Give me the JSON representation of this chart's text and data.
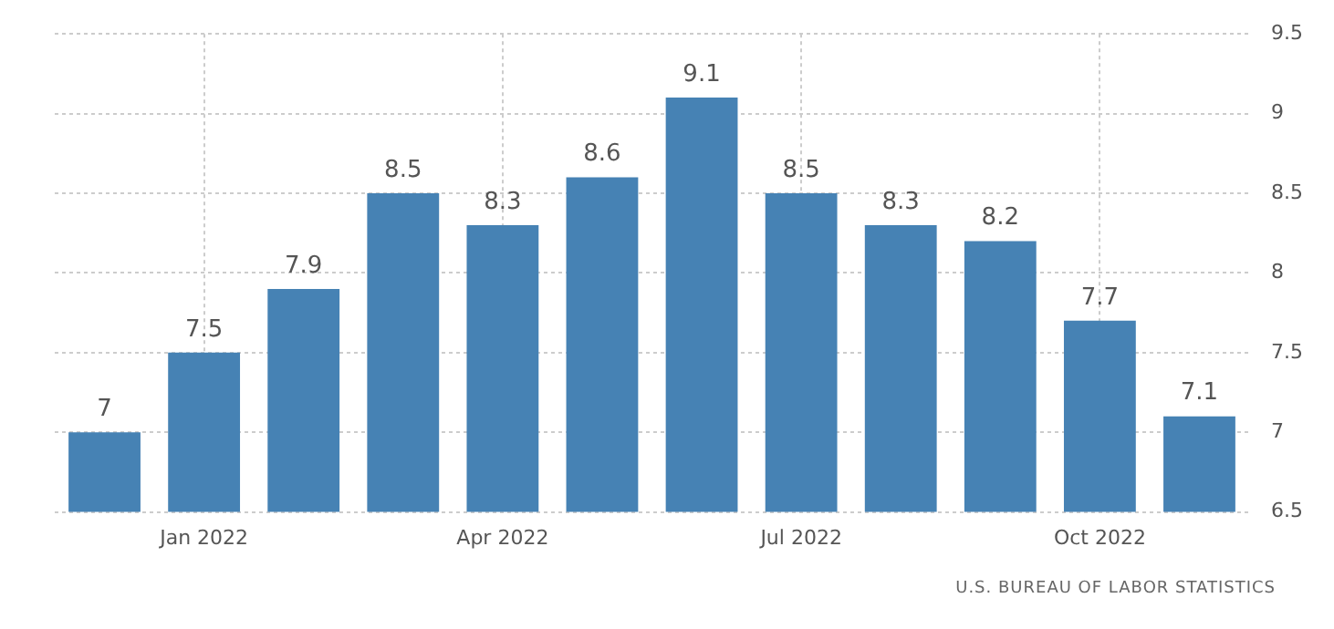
{
  "chart_data": {
    "type": "bar",
    "categories": [
      null,
      "Jan 2022",
      null,
      null,
      "Apr 2022",
      null,
      null,
      "Jul 2022",
      null,
      null,
      "Oct 2022",
      null
    ],
    "values": [
      7,
      7.5,
      7.9,
      8.5,
      8.3,
      8.6,
      9.1,
      8.5,
      8.3,
      8.2,
      7.7,
      7.1
    ],
    "color": "#4682b4",
    "ylim": [
      6.5,
      9.5
    ],
    "yticks": [
      6.5,
      7,
      7.5,
      8,
      8.5,
      9,
      9.5
    ],
    "grid": true,
    "data_labels": true,
    "annotations": [
      "U.S. BUREAU OF LABOR STATISTICS"
    ]
  }
}
